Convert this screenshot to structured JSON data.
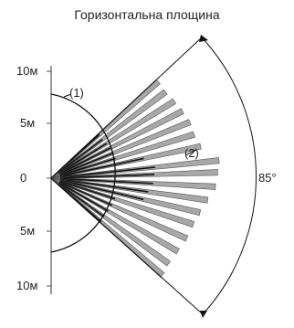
{
  "title": "Горизонтальна площина",
  "y_axis_labels": [
    "10м",
    "5м",
    "0",
    "5м",
    "10м"
  ],
  "callouts": [
    "(1)",
    "(2)"
  ],
  "angle_label": "85°",
  "rays": [
    {
      "angle_deg": 42,
      "length_m": 13.5
    },
    {
      "angle_deg": 37,
      "length_m": 13.4
    },
    {
      "angle_deg": 32,
      "length_m": 13.6
    },
    {
      "angle_deg": 27,
      "length_m": 13.8
    },
    {
      "angle_deg": 22,
      "length_m": 14.0
    },
    {
      "angle_deg": 17,
      "length_m": 14.0
    },
    {
      "angle_deg": 12,
      "length_m": 14.3
    },
    {
      "angle_deg": 6,
      "length_m": 15.8
    },
    {
      "angle_deg": 2,
      "length_m": 15.6
    },
    {
      "angle_deg": -3,
      "length_m": 15.4
    },
    {
      "angle_deg": -8,
      "length_m": 14.8
    },
    {
      "angle_deg": -13,
      "length_m": 14.3
    },
    {
      "angle_deg": -18,
      "length_m": 14.0
    },
    {
      "angle_deg": -24,
      "length_m": 13.9
    },
    {
      "angle_deg": -30,
      "length_m": 13.7
    },
    {
      "angle_deg": -36,
      "length_m": 13.6
    },
    {
      "angle_deg": -41,
      "length_m": 13.8
    }
  ],
  "colors": {
    "ray_fill": "#a8a8a8",
    "ray_stroke": "#555555",
    "ray_core": "#111111",
    "line": "#111111"
  }
}
